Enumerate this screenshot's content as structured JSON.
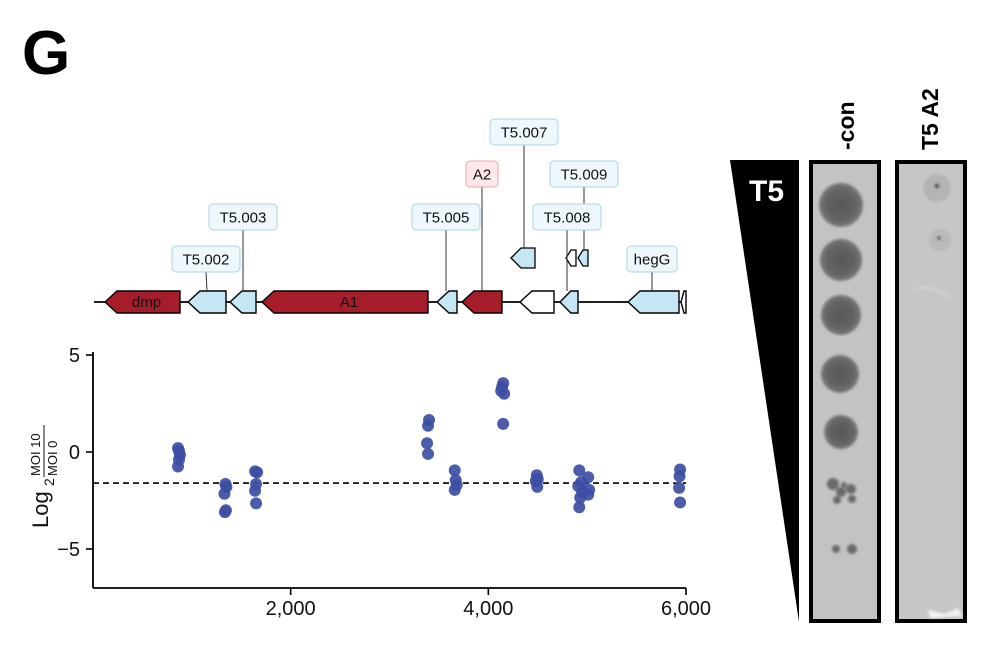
{
  "panel_letter": "G",
  "colors": {
    "hit_gene": "#a51c2a",
    "t5_gene": "#c6e6f3",
    "other_gene": "#ffffff",
    "dot": "#3d4ea3",
    "label_blue_bg": "#eef7fb",
    "label_red_bg": "#fde7ea"
  },
  "genes": [
    {
      "name": "dmp",
      "start": 105,
      "end": 180,
      "type": "hit",
      "label_inside": true
    },
    {
      "name": "T5.002",
      "start": 188,
      "end": 226,
      "type": "t5"
    },
    {
      "name": "T5.003",
      "start": 230,
      "end": 256,
      "type": "t5"
    },
    {
      "name": "A1",
      "start": 262,
      "end": 428,
      "type": "hit",
      "label_inside": true
    },
    {
      "name": "T5.005",
      "start": 437,
      "end": 457,
      "type": "t5"
    },
    {
      "name": "A2",
      "start": 462,
      "end": 502,
      "type": "hit"
    },
    {
      "name": "",
      "start": 520,
      "end": 554,
      "type": "other"
    },
    {
      "name": "T5.008",
      "start": 560,
      "end": 578,
      "type": "t5"
    },
    {
      "name": "hegG",
      "start": 628,
      "end": 679,
      "type": "t5"
    },
    {
      "name": "",
      "start": 681,
      "end": 686,
      "type": "other"
    }
  ],
  "gene_labels": [
    {
      "text": "T5.002",
      "gene": "T5.002"
    },
    {
      "text": "T5.003",
      "gene": "T5.003"
    },
    {
      "text": "T5.005",
      "gene": "T5.005"
    },
    {
      "text": "A2",
      "gene": "A2"
    },
    {
      "text": "T5.007",
      "gene": "T5.007"
    },
    {
      "text": "T5.009",
      "gene": "T5.009"
    },
    {
      "text": "T5.008",
      "gene": "T5.008"
    },
    {
      "text": "hegG",
      "gene": "hegG"
    }
  ],
  "chart_data": {
    "type": "scatter",
    "ylabel_prefix": "Log",
    "ylabel_sub": "2",
    "ylabel_numerator": "MOI 10",
    "ylabel_denominator": "MOI 0",
    "xlim": [
      0,
      6000
    ],
    "ylim": [
      -7,
      5
    ],
    "xticks": [
      2000,
      4000,
      6000
    ],
    "xtick_labels": [
      "2,000",
      "4,000",
      "6,000"
    ],
    "yticks": [
      5,
      0,
      -5
    ],
    "ytick_labels": [
      "5",
      "0",
      "−5"
    ],
    "baseline": -1.6,
    "grid": false,
    "points": [
      {
        "x": 860,
        "y": 0.2
      },
      {
        "x": 870,
        "y": 0.05
      },
      {
        "x": 880,
        "y": -0.15
      },
      {
        "x": 870,
        "y": -0.4
      },
      {
        "x": 860,
        "y": -0.75
      },
      {
        "x": 1340,
        "y": -1.65
      },
      {
        "x": 1350,
        "y": -1.8
      },
      {
        "x": 1330,
        "y": -2.15
      },
      {
        "x": 1345,
        "y": -3.0
      },
      {
        "x": 1335,
        "y": -3.1
      },
      {
        "x": 1640,
        "y": -1.0
      },
      {
        "x": 1660,
        "y": -1.05
      },
      {
        "x": 1650,
        "y": -1.65
      },
      {
        "x": 1640,
        "y": -2.0
      },
      {
        "x": 1650,
        "y": -2.65
      },
      {
        "x": 3400,
        "y": 1.65
      },
      {
        "x": 3390,
        "y": 1.35
      },
      {
        "x": 3380,
        "y": 0.45
      },
      {
        "x": 3390,
        "y": -0.1
      },
      {
        "x": 3660,
        "y": -0.95
      },
      {
        "x": 3670,
        "y": -1.45
      },
      {
        "x": 3680,
        "y": -1.7
      },
      {
        "x": 3660,
        "y": -1.95
      },
      {
        "x": 4150,
        "y": 3.55
      },
      {
        "x": 4140,
        "y": 3.35
      },
      {
        "x": 4130,
        "y": 3.15
      },
      {
        "x": 4160,
        "y": 3.0
      },
      {
        "x": 4150,
        "y": 1.45
      },
      {
        "x": 4490,
        "y": -1.2
      },
      {
        "x": 4500,
        "y": -1.4
      },
      {
        "x": 4480,
        "y": -1.5
      },
      {
        "x": 4495,
        "y": -1.8
      },
      {
        "x": 4920,
        "y": -0.95
      },
      {
        "x": 4940,
        "y": -1.55
      },
      {
        "x": 4910,
        "y": -1.75
      },
      {
        "x": 4950,
        "y": -2.05
      },
      {
        "x": 4930,
        "y": -2.35
      },
      {
        "x": 4920,
        "y": -2.85
      },
      {
        "x": 5010,
        "y": -1.3
      },
      {
        "x": 5020,
        "y": -1.95
      },
      {
        "x": 5010,
        "y": -2.2
      },
      {
        "x": 5940,
        "y": -0.9
      },
      {
        "x": 5935,
        "y": -1.25
      },
      {
        "x": 5930,
        "y": -1.85
      },
      {
        "x": 5940,
        "y": -2.6
      }
    ]
  },
  "plaque_assay": {
    "phage_label": "T5",
    "columns": [
      "-con",
      "T5 A2"
    ]
  }
}
